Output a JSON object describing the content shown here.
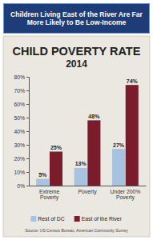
{
  "chart_data": {
    "type": "bar",
    "header": "Children Living East of the River Are Far More Likely to Be Low-Income",
    "title": "CHILD POVERTY RATE",
    "subtitle": "2014",
    "categories": [
      "Extreme Poverty",
      "Poverty",
      "Under 200% Poverty"
    ],
    "series": [
      {
        "name": "Rest of DC",
        "color": "#a8c3df",
        "values": [
          5,
          13,
          27
        ],
        "value_labels": [
          "5%",
          "13%",
          "27%"
        ]
      },
      {
        "name": "East of the River",
        "color": "#7b1c2c",
        "values": [
          25,
          48,
          74
        ],
        "value_labels": [
          "25%",
          "48%",
          "74%"
        ]
      }
    ],
    "ylim": [
      0,
      80
    ],
    "yticks": [
      {
        "value": 0,
        "label": "0%"
      },
      {
        "value": 10,
        "label": "10%"
      },
      {
        "value": 20,
        "label": "20%"
      },
      {
        "value": 30,
        "label": "30%"
      },
      {
        "value": 40,
        "label": "40%"
      },
      {
        "value": 50,
        "label": "50%"
      },
      {
        "value": 60,
        "label": "60%"
      },
      {
        "value": 70,
        "label": "70%"
      },
      {
        "value": 80,
        "label": "80%"
      }
    ],
    "grid": false,
    "data_labels": true,
    "legend": "bottom",
    "source": "Source: US Census Bureau, American Community Survey"
  }
}
